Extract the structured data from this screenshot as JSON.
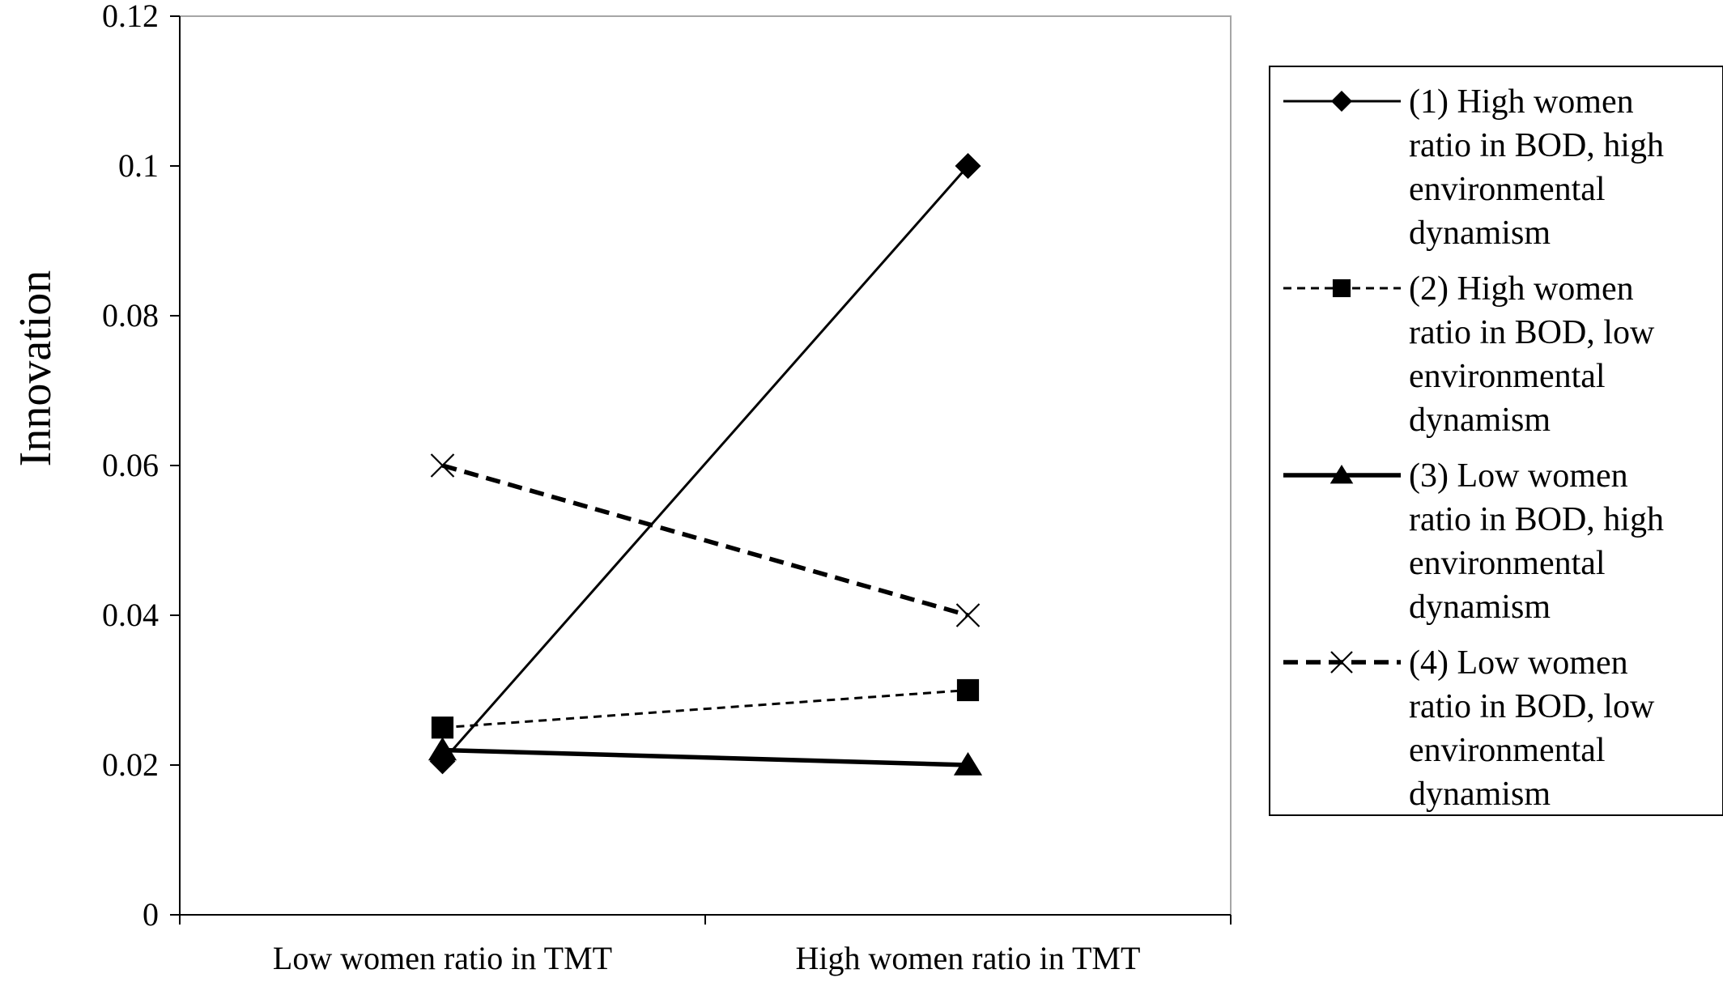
{
  "chart_data": {
    "type": "line",
    "title": "",
    "xlabel": "",
    "ylabel": "Innovation",
    "categories": [
      "Low women ratio in TMT",
      "High women ratio in TMT"
    ],
    "ylim": [
      0,
      0.12
    ],
    "yticks": [
      "0",
      "0.02",
      "0.04",
      "0.06",
      "0.08",
      "0.1",
      "0.12"
    ],
    "ytick_values": [
      0,
      0.02,
      0.04,
      0.06,
      0.08,
      0.1,
      0.12
    ],
    "grid": false,
    "legend_position": "right",
    "series": [
      {
        "name": "(1) High women ratio in BOD, high environmental dynamism",
        "legend_lines": [
          "(1) High women",
          "ratio in BOD, high",
          "environmental",
          "dynamism"
        ],
        "values": [
          0.0205,
          0.1
        ],
        "marker": "diamond",
        "line": "solid",
        "weight": "thin"
      },
      {
        "name": "(2) High women ratio in BOD, low environmental dynamism",
        "legend_lines": [
          "(2) High women",
          "ratio in BOD, low",
          "environmental",
          "dynamism"
        ],
        "values": [
          0.025,
          0.03
        ],
        "marker": "square",
        "line": "dashed",
        "weight": "thin"
      },
      {
        "name": "(3) Low women ratio in BOD, high environmental dynamism",
        "legend_lines": [
          "(3) Low women",
          "ratio in BOD, high",
          "environmental",
          "dynamism"
        ],
        "values": [
          0.022,
          0.02
        ],
        "marker": "triangle",
        "line": "solid",
        "weight": "thick"
      },
      {
        "name": "(4) Low women ratio in BOD, low environmental dynamism",
        "legend_lines": [
          "(4) Low women",
          "ratio in BOD, low",
          "environmental",
          "dynamism"
        ],
        "values": [
          0.06,
          0.04
        ],
        "marker": "x",
        "line": "dashed",
        "weight": "thick"
      }
    ]
  }
}
